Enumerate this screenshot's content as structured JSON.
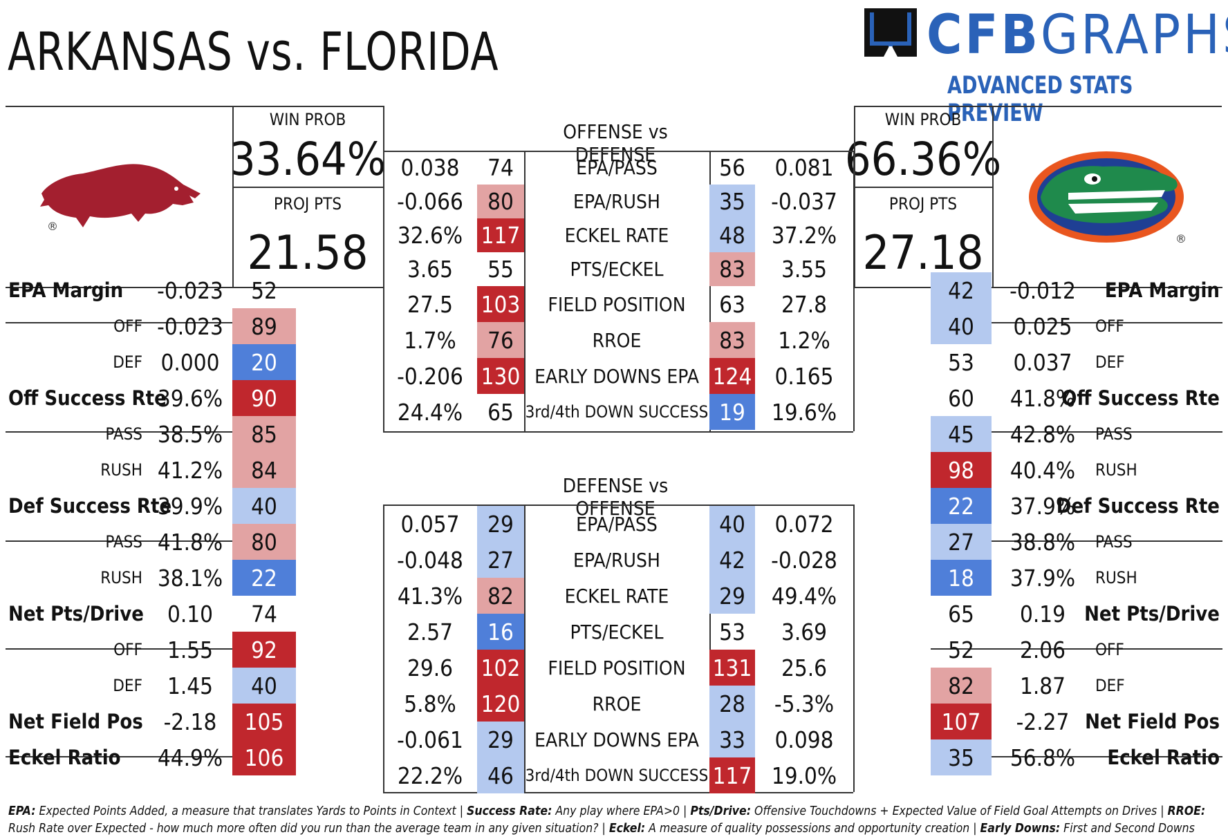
{
  "title": "ARKANSAS vs. FLORIDA",
  "brand": {
    "name_bold": "CFB",
    "name_rest": "GRAPHS",
    "subtitle": "ADVANCED STATS PREVIEW",
    "color": "#2a62b8"
  },
  "colors": {
    "dark_red": "#c0272d",
    "light_red": "#e2a3a3",
    "dark_blue": "#4f7fd9",
    "light_blue": "#b4c9ef"
  },
  "home": {
    "team": "Arkansas",
    "logo": "razorback-logo",
    "win_prob_label": "WIN PROB",
    "win_prob": "33.64%",
    "proj_pts_label": "PROJ PTS",
    "proj_pts": "21.58"
  },
  "away": {
    "team": "Florida",
    "logo": "gator-logo",
    "win_prob_label": "WIN PROB",
    "win_prob": "66.36%",
    "proj_pts_label": "PROJ PTS",
    "proj_pts": "27.18"
  },
  "left_table": [
    {
      "label": "EPA Margin",
      "bold": true,
      "value": "-0.023",
      "rank": "52",
      "shade": "none"
    },
    {
      "label": "OFF",
      "bold": false,
      "value": "-0.023",
      "rank": "89",
      "shade": "light_red"
    },
    {
      "label": "DEF",
      "bold": false,
      "value": "0.000",
      "rank": "20",
      "shade": "dark_blue"
    },
    {
      "label": "Off Success Rte",
      "bold": true,
      "value": "39.6%",
      "rank": "90",
      "shade": "dark_red"
    },
    {
      "label": "PASS",
      "bold": false,
      "value": "38.5%",
      "rank": "85",
      "shade": "light_red"
    },
    {
      "label": "RUSH",
      "bold": false,
      "value": "41.2%",
      "rank": "84",
      "shade": "light_red"
    },
    {
      "label": "Def Success Rte",
      "bold": true,
      "value": "39.9%",
      "rank": "40",
      "shade": "light_blue"
    },
    {
      "label": "PASS",
      "bold": false,
      "value": "41.8%",
      "rank": "80",
      "shade": "light_red"
    },
    {
      "label": "RUSH",
      "bold": false,
      "value": "38.1%",
      "rank": "22",
      "shade": "dark_blue"
    },
    {
      "label": "Net Pts/Drive",
      "bold": true,
      "value": "0.10",
      "rank": "74",
      "shade": "none"
    },
    {
      "label": "OFF",
      "bold": false,
      "value": "1.55",
      "rank": "92",
      "shade": "dark_red"
    },
    {
      "label": "DEF",
      "bold": false,
      "value": "1.45",
      "rank": "40",
      "shade": "light_blue"
    },
    {
      "label": "Net Field Pos",
      "bold": true,
      "value": "-2.18",
      "rank": "105",
      "shade": "dark_red"
    },
    {
      "label": "Eckel Ratio",
      "bold": true,
      "value": "44.9%",
      "rank": "106",
      "shade": "dark_red"
    }
  ],
  "right_table": [
    {
      "label": "EPA Margin",
      "bold": true,
      "value": "-0.012",
      "rank": "42",
      "shade": "light_blue"
    },
    {
      "label": "OFF",
      "bold": false,
      "value": "0.025",
      "rank": "40",
      "shade": "light_blue"
    },
    {
      "label": "DEF",
      "bold": false,
      "value": "0.037",
      "rank": "53",
      "shade": "none"
    },
    {
      "label": "Off Success Rte",
      "bold": true,
      "value": "41.8%",
      "rank": "60",
      "shade": "none"
    },
    {
      "label": "PASS",
      "bold": false,
      "value": "42.8%",
      "rank": "45",
      "shade": "light_blue"
    },
    {
      "label": "RUSH",
      "bold": false,
      "value": "40.4%",
      "rank": "98",
      "shade": "dark_red"
    },
    {
      "label": "Def Success Rte",
      "bold": true,
      "value": "37.9%",
      "rank": "22",
      "shade": "dark_blue"
    },
    {
      "label": "PASS",
      "bold": false,
      "value": "38.8%",
      "rank": "27",
      "shade": "light_blue"
    },
    {
      "label": "RUSH",
      "bold": false,
      "value": "37.9%",
      "rank": "18",
      "shade": "dark_blue"
    },
    {
      "label": "Net Pts/Drive",
      "bold": true,
      "value": "0.19",
      "rank": "65",
      "shade": "none"
    },
    {
      "label": "OFF",
      "bold": false,
      "value": "2.06",
      "rank": "52",
      "shade": "none"
    },
    {
      "label": "DEF",
      "bold": false,
      "value": "1.87",
      "rank": "82",
      "shade": "light_red"
    },
    {
      "label": "Net Field Pos",
      "bold": true,
      "value": "-2.27",
      "rank": "107",
      "shade": "dark_red"
    },
    {
      "label": "Eckel Ratio",
      "bold": true,
      "value": "56.8%",
      "rank": "35",
      "shade": "light_blue"
    }
  ],
  "offense_vs_defense": {
    "title": "OFFENSE vs DEFENSE",
    "rows": [
      {
        "lv": "0.038",
        "lr": "74",
        "ls": "none",
        "stat": "EPA/PASS",
        "rr": "56",
        "rs": "none",
        "rv": "0.081"
      },
      {
        "lv": "-0.066",
        "lr": "80",
        "ls": "light_red",
        "stat": "EPA/RUSH",
        "rr": "35",
        "rs": "light_blue",
        "rv": "-0.037"
      },
      {
        "lv": "32.6%",
        "lr": "117",
        "ls": "dark_red",
        "stat": "ECKEL RATE",
        "rr": "48",
        "rs": "light_blue",
        "rv": "37.2%"
      },
      {
        "lv": "3.65",
        "lr": "55",
        "ls": "none",
        "stat": "PTS/ECKEL",
        "rr": "83",
        "rs": "light_red",
        "rv": "3.55"
      },
      {
        "lv": "27.5",
        "lr": "103",
        "ls": "dark_red",
        "stat": "FIELD POSITION",
        "rr": "63",
        "rs": "none",
        "rv": "27.8"
      },
      {
        "lv": "1.7%",
        "lr": "76",
        "ls": "light_red",
        "stat": "RROE",
        "rr": "83",
        "rs": "light_red",
        "rv": "1.2%"
      },
      {
        "lv": "-0.206",
        "lr": "130",
        "ls": "dark_red",
        "stat": "EARLY DOWNS EPA",
        "rr": "124",
        "rs": "dark_red",
        "rv": "0.165"
      },
      {
        "lv": "24.4%",
        "lr": "65",
        "ls": "none",
        "stat": "3rd/4th DOWN SUCCESS",
        "rr": "19",
        "rs": "dark_blue",
        "rv": "19.6%"
      }
    ]
  },
  "defense_vs_offense": {
    "title": "DEFENSE vs OFFENSE",
    "rows": [
      {
        "lv": "0.057",
        "lr": "29",
        "ls": "light_blue",
        "stat": "EPA/PASS",
        "rr": "40",
        "rs": "light_blue",
        "rv": "0.072"
      },
      {
        "lv": "-0.048",
        "lr": "27",
        "ls": "light_blue",
        "stat": "EPA/RUSH",
        "rr": "42",
        "rs": "light_blue",
        "rv": "-0.028"
      },
      {
        "lv": "41.3%",
        "lr": "82",
        "ls": "light_red",
        "stat": "ECKEL RATE",
        "rr": "29",
        "rs": "light_blue",
        "rv": "49.4%"
      },
      {
        "lv": "2.57",
        "lr": "16",
        "ls": "dark_blue",
        "stat": "PTS/ECKEL",
        "rr": "53",
        "rs": "none",
        "rv": "3.69"
      },
      {
        "lv": "29.6",
        "lr": "102",
        "ls": "dark_red",
        "stat": "FIELD POSITION",
        "rr": "131",
        "rs": "dark_red",
        "rv": "25.6"
      },
      {
        "lv": "5.8%",
        "lr": "120",
        "ls": "dark_red",
        "stat": "RROE",
        "rr": "28",
        "rs": "light_blue",
        "rv": "-5.3%"
      },
      {
        "lv": "-0.061",
        "lr": "29",
        "ls": "light_blue",
        "stat": "EARLY DOWNS EPA",
        "rr": "33",
        "rs": "light_blue",
        "rv": "0.098"
      },
      {
        "lv": "22.2%",
        "lr": "46",
        "ls": "light_blue",
        "stat": "3rd/4th DOWN SUCCESS",
        "rr": "117",
        "rs": "dark_red",
        "rv": "19.0%"
      }
    ]
  },
  "footnote": [
    {
      "b": "EPA:",
      "t": " Expected Points Added, a measure that translates Yards to Points in Context | "
    },
    {
      "b": "Success Rate:",
      "t": " Any play where EPA>0 | "
    },
    {
      "b": "Pts/Drive:",
      "t": " Offensive Touchdowns + Expected Value of Field Goal Attempts on Drives | "
    },
    {
      "b": "RROE:",
      "t": " Rush Rate over Expected - how much more often did you run than the average team in any given situation? | "
    },
    {
      "b": "Eckel:",
      "t": " A measure of quality possessions and opportunity creation | "
    },
    {
      "b": "Early Downs:",
      "t": " First and Second Downs"
    }
  ]
}
